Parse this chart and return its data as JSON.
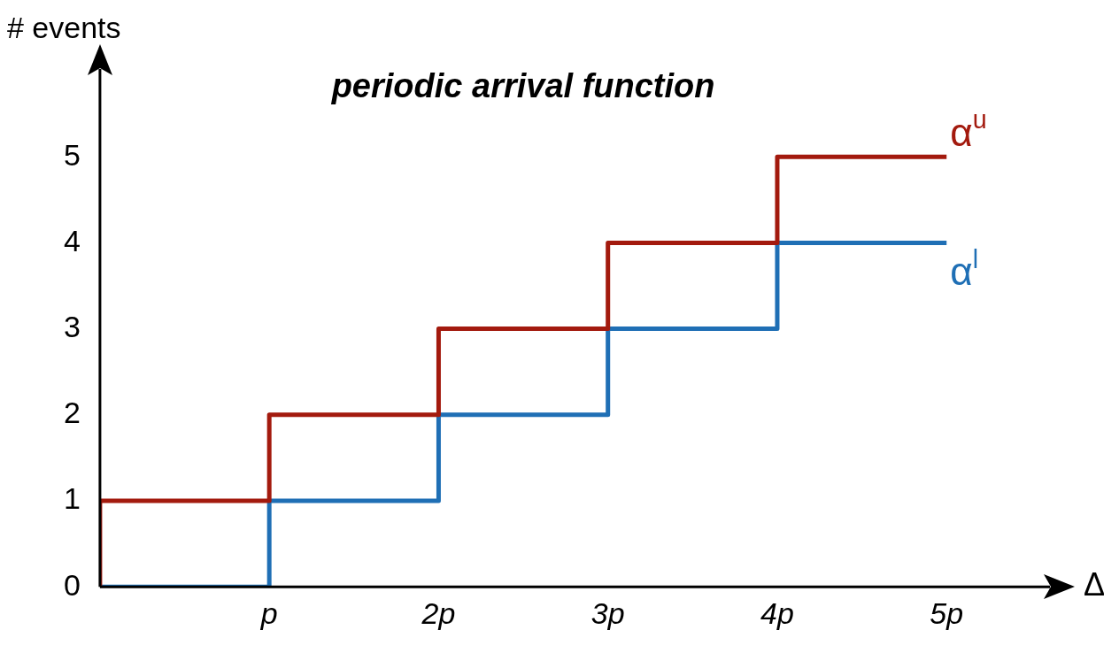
{
  "chart_data": {
    "type": "step",
    "title": "periodic arrival function",
    "xlabel": "Δ",
    "ylabel": "# events",
    "series": [
      {
        "name": "α$^{u}$",
        "color": "#a31a0e",
        "x": [
          0,
          0,
          1,
          2,
          3,
          4,
          5
        ],
        "values": [
          0,
          1,
          2,
          3,
          4,
          5,
          5
        ]
      },
      {
        "name": "α$^{l}$",
        "color": "#1f6fb5",
        "x": [
          0,
          1,
          2,
          3,
          4,
          5
        ],
        "values": [
          0,
          1,
          2,
          3,
          4,
          4
        ]
      }
    ],
    "xlim": [
      0,
      5.6
    ],
    "xticks": [
      {
        "value": 1,
        "label": "p"
      },
      {
        "value": 2,
        "label": "2p"
      },
      {
        "value": 3,
        "label": "3p"
      },
      {
        "value": 4,
        "label": "4p"
      },
      {
        "value": 5,
        "label": "5p"
      }
    ],
    "ylim": [
      0,
      6
    ],
    "yticks": [
      0,
      1,
      2,
      3,
      4,
      5
    ],
    "grid": false,
    "legend": false,
    "marker": "none",
    "line_style": "solid"
  }
}
